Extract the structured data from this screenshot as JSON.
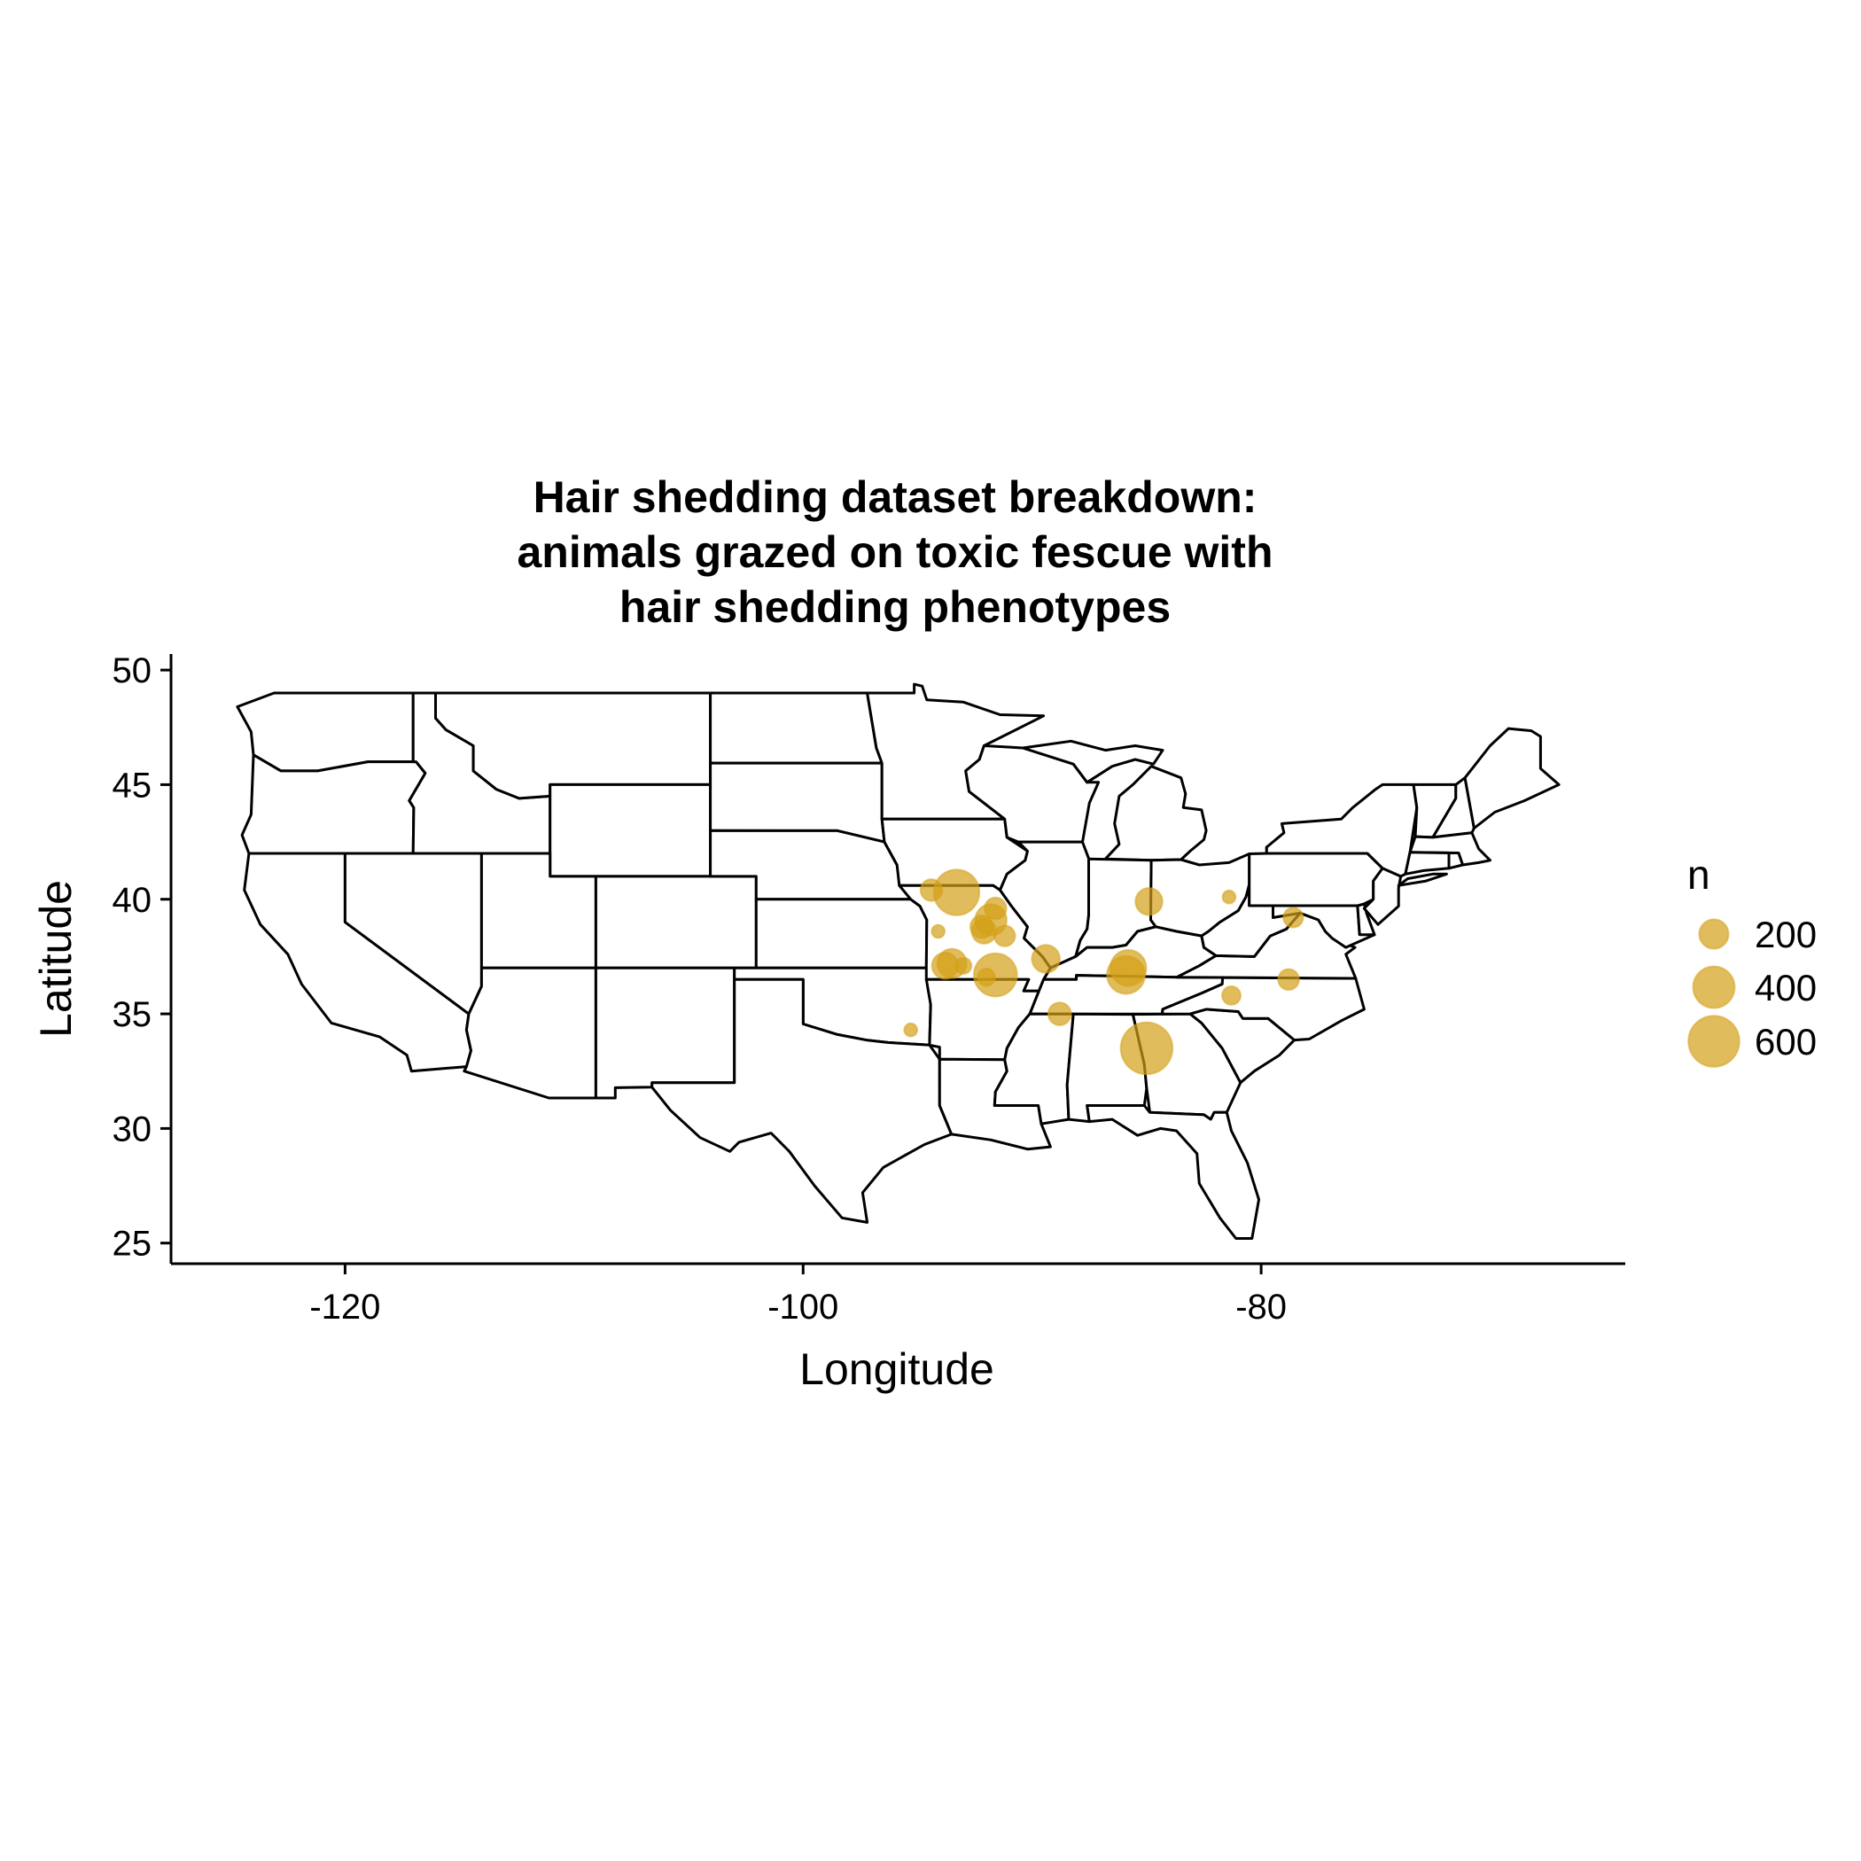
{
  "chart_data": {
    "type": "scatter",
    "title_lines": [
      "Hair shedding dataset breakdown:",
      "animals grazed on toxic fescue with",
      "hair shedding phenotypes"
    ],
    "xlabel": "Longitude",
    "ylabel": "Latitude",
    "xlim": [
      -127.6,
      -64.1
    ],
    "ylim": [
      24.1,
      50.7
    ],
    "xticks": [
      -120,
      -100,
      -80
    ],
    "yticks": [
      25,
      30,
      35,
      40,
      45,
      50
    ],
    "xtick_labels": [
      "-120",
      "-100",
      "-80"
    ],
    "ytick_labels": [
      "25",
      "30",
      "35",
      "40",
      "45",
      "50"
    ],
    "grid": false,
    "legend": {
      "title": "n",
      "position": "right",
      "entries": [
        {
          "label": "200",
          "value": 200
        },
        {
          "label": "400",
          "value": 400
        },
        {
          "label": "600",
          "value": 600
        }
      ]
    },
    "point_color": "#D4A017",
    "point_alpha": 0.7,
    "points": [
      {
        "lon": -93.3,
        "lat": 40.3,
        "n": 480
      },
      {
        "lon": -94.4,
        "lat": 40.4,
        "n": 110
      },
      {
        "lon": -94.1,
        "lat": 38.6,
        "n": 40
      },
      {
        "lon": -91.6,
        "lat": 39.6,
        "n": 110
      },
      {
        "lon": -91.8,
        "lat": 39.1,
        "n": 230
      },
      {
        "lon": -92.2,
        "lat": 38.8,
        "n": 120
      },
      {
        "lon": -92.1,
        "lat": 38.6,
        "n": 140
      },
      {
        "lon": -91.2,
        "lat": 38.4,
        "n": 100
      },
      {
        "lon": -91.6,
        "lat": 36.7,
        "n": 430
      },
      {
        "lon": -92.0,
        "lat": 36.6,
        "n": 70
      },
      {
        "lon": -93.5,
        "lat": 37.2,
        "n": 200
      },
      {
        "lon": -93.8,
        "lat": 37.1,
        "n": 160
      },
      {
        "lon": -93.0,
        "lat": 37.1,
        "n": 60
      },
      {
        "lon": -89.4,
        "lat": 37.4,
        "n": 180
      },
      {
        "lon": -88.8,
        "lat": 35.0,
        "n": 120
      },
      {
        "lon": -85.8,
        "lat": 37.0,
        "n": 300
      },
      {
        "lon": -85.9,
        "lat": 36.7,
        "n": 330
      },
      {
        "lon": -84.9,
        "lat": 39.9,
        "n": 170
      },
      {
        "lon": -85.0,
        "lat": 33.5,
        "n": 620
      },
      {
        "lon": -81.4,
        "lat": 40.1,
        "n": 40
      },
      {
        "lon": -78.6,
        "lat": 39.2,
        "n": 90
      },
      {
        "lon": -78.8,
        "lat": 36.5,
        "n": 100
      },
      {
        "lon": -81.3,
        "lat": 35.8,
        "n": 80
      },
      {
        "lon": -95.3,
        "lat": 34.3,
        "n": 40
      }
    ]
  }
}
